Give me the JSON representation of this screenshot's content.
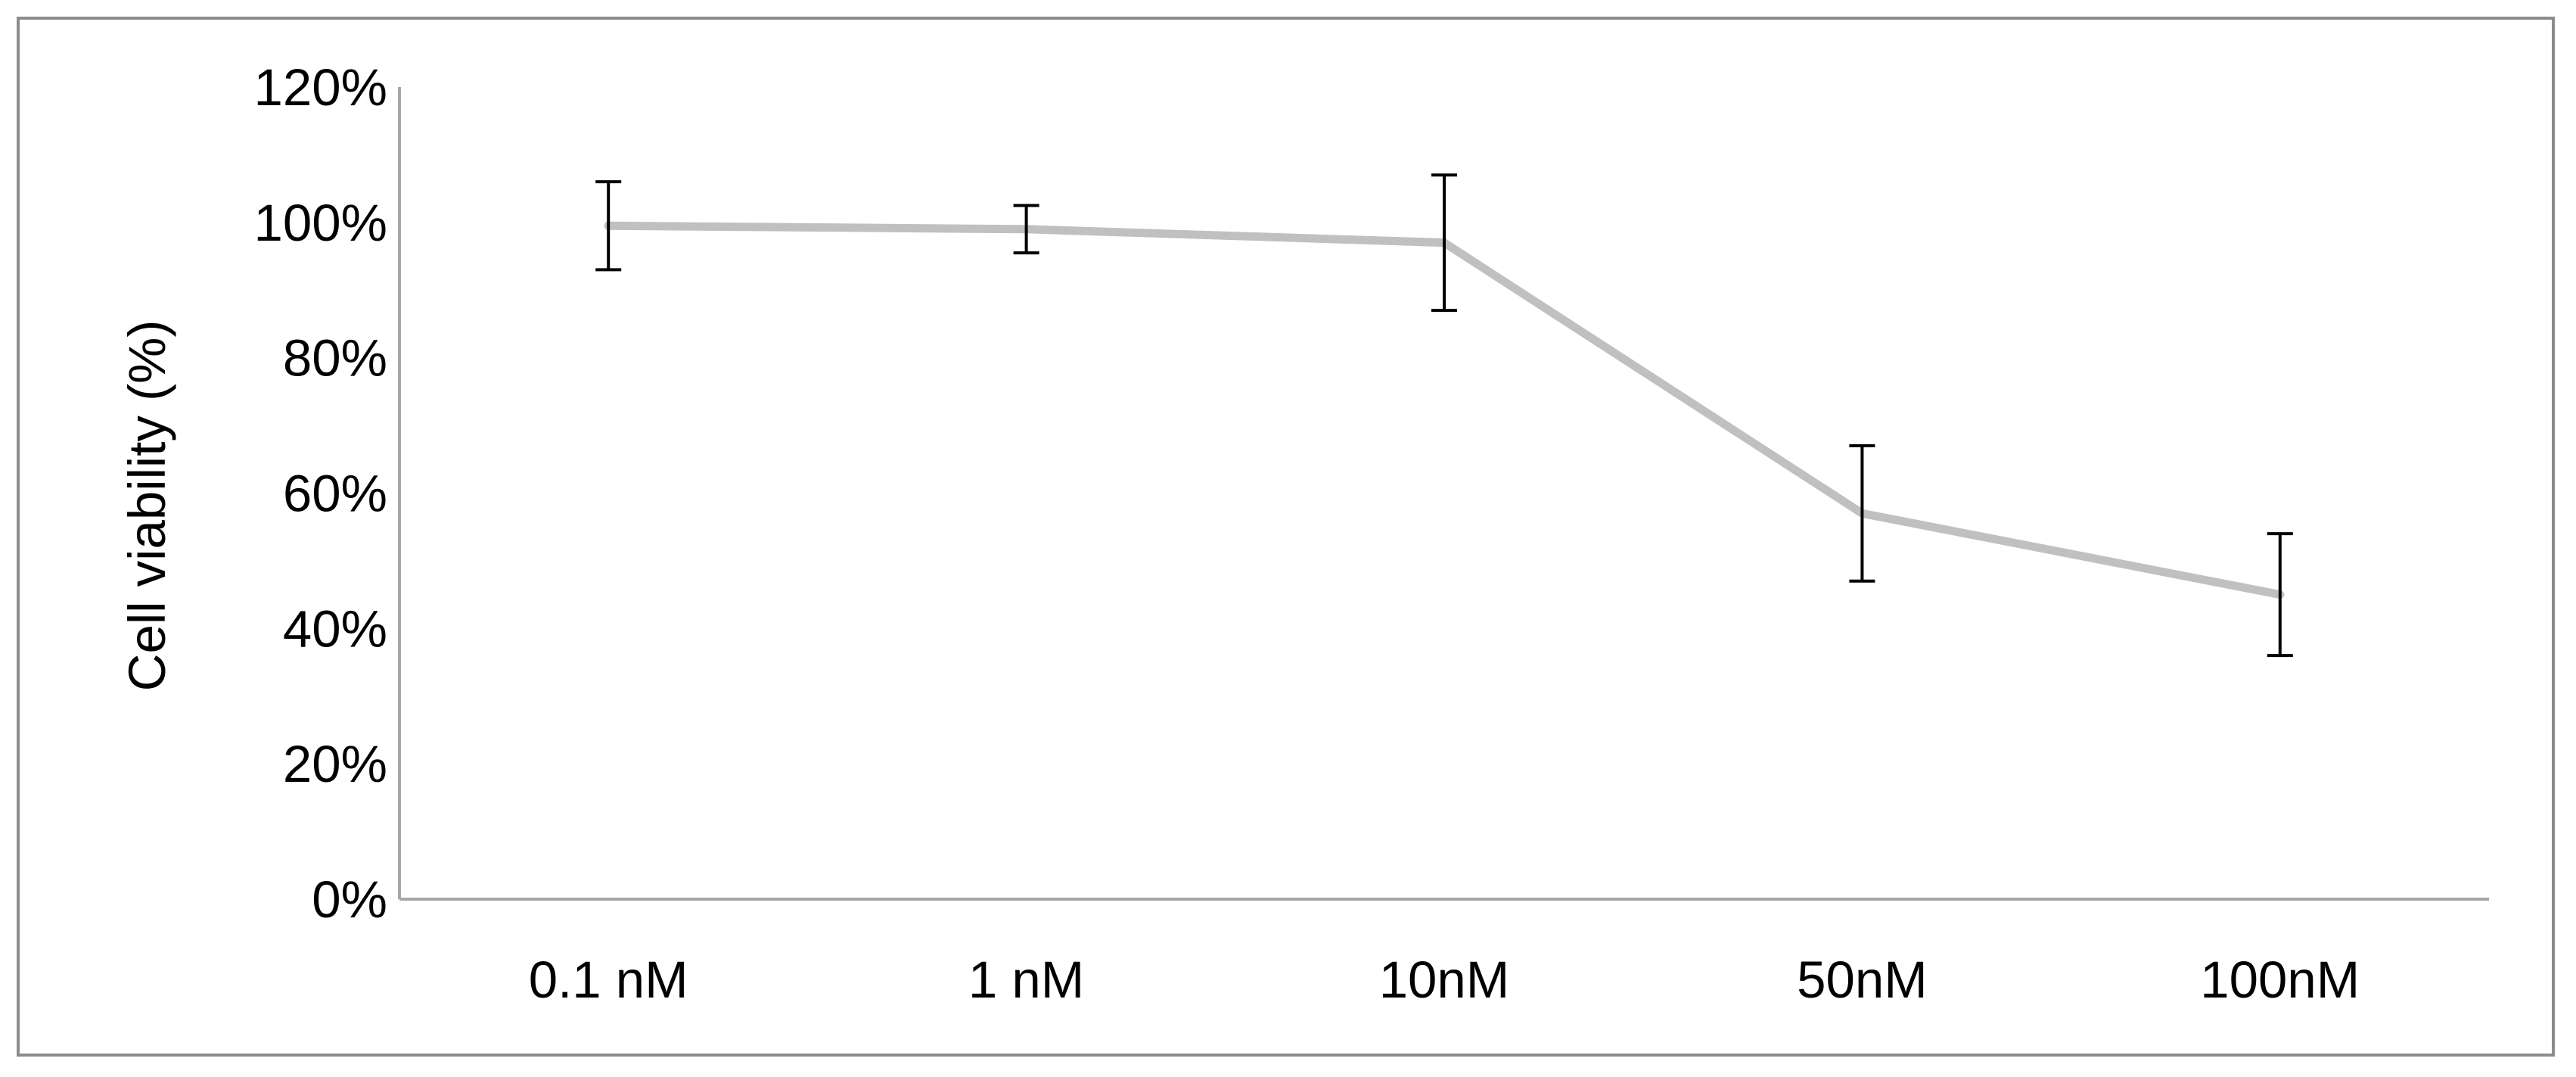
{
  "chart_data": {
    "type": "line",
    "title": "",
    "xlabel": "",
    "ylabel": "Cell viability (%)",
    "categories": [
      "0.1 nM",
      "1 nM",
      "10nM",
      "50nM",
      "100nM"
    ],
    "series": [
      {
        "values": [
          99.5,
          99.0,
          97.0,
          57.0,
          45.0
        ],
        "error": [
          6.5,
          3.5,
          10.0,
          10.0,
          9.0
        ],
        "color": "#c0c0c0"
      }
    ],
    "ylim": [
      0,
      120
    ],
    "yticks": [
      0,
      20,
      40,
      60,
      80,
      100,
      120
    ],
    "ytick_labels": [
      "0%",
      "20%",
      "40%",
      "60%",
      "80%",
      "100%",
      "120%"
    ],
    "grid": false,
    "legend": "none",
    "error_bar_color": "#000000",
    "axis_color": "#a6a6a6"
  }
}
